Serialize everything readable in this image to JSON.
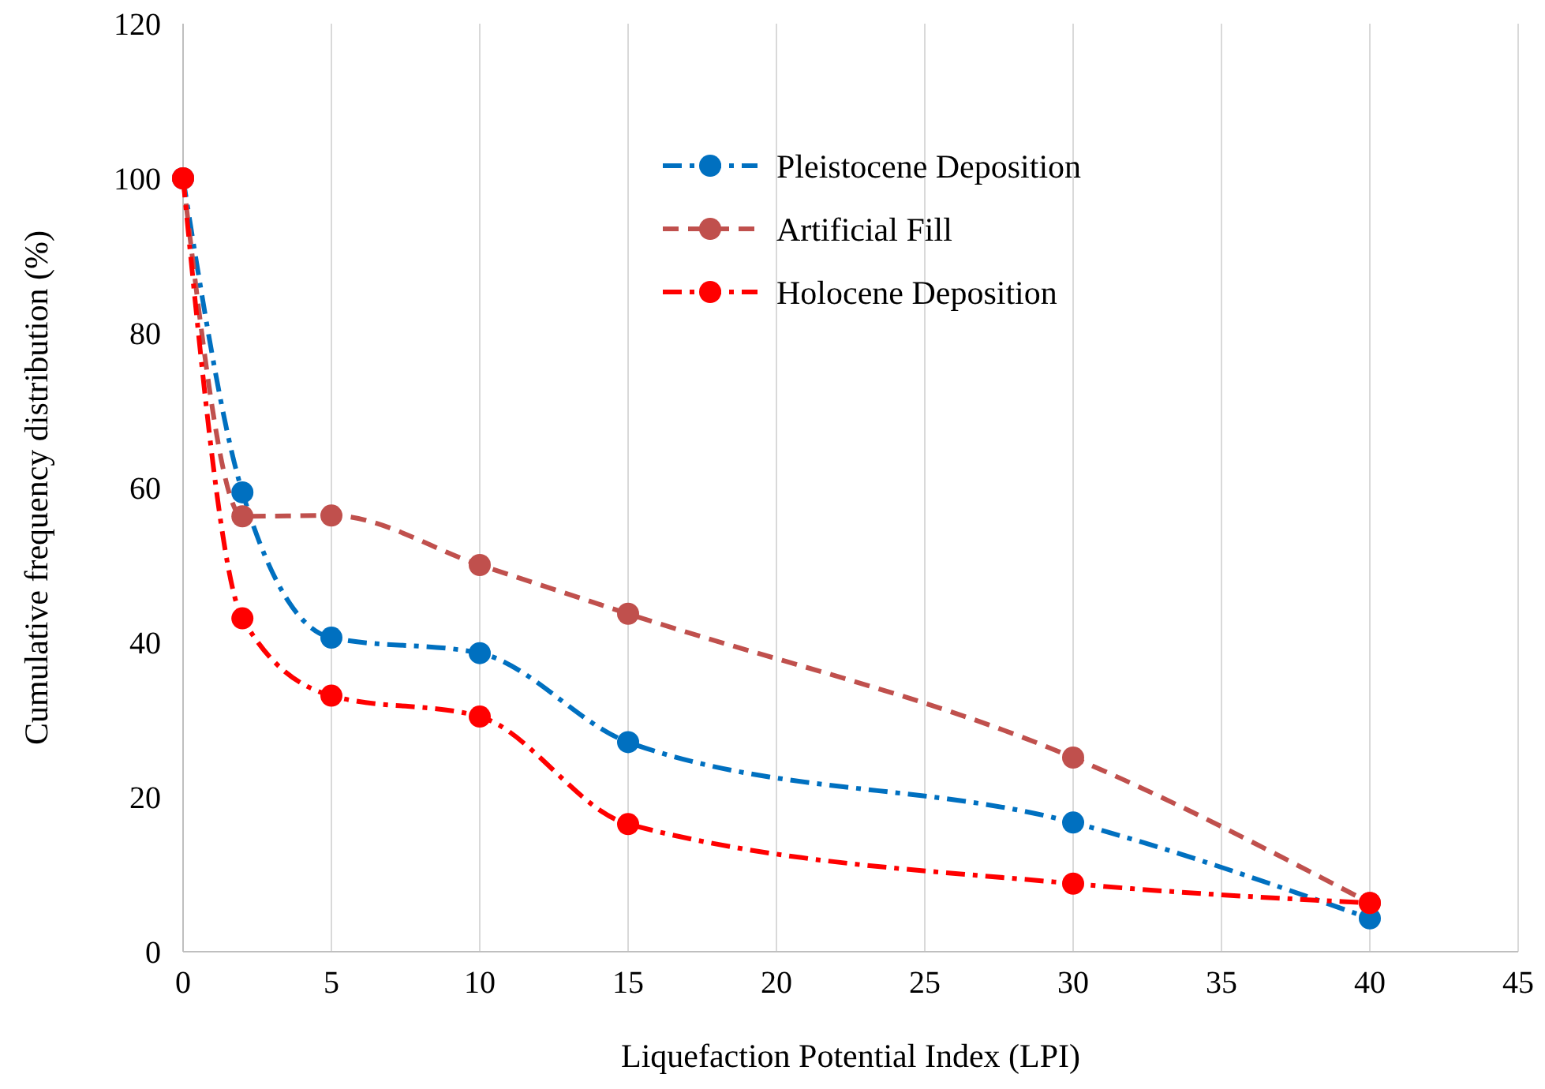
{
  "chart_data": {
    "type": "line",
    "xlabel": "Liquefaction Potential Index (LPI)",
    "ylabel": "Cumulative frequency distribution (%)",
    "xlim": [
      0,
      45
    ],
    "xticks": [
      0,
      5,
      10,
      15,
      20,
      25,
      30,
      35,
      40,
      45
    ],
    "ylim": [
      0,
      120
    ],
    "yticks": [
      0,
      20,
      40,
      60,
      80,
      100,
      120
    ],
    "grid": "x",
    "legend": "top right",
    "marker": "circle",
    "series": [
      {
        "name": "Pleistocene Deposition",
        "color": "#0070c0",
        "line_style": "dashdot",
        "x": [
          0,
          2,
          5,
          10,
          15,
          30,
          40
        ],
        "values": [
          100,
          59.4,
          40.6,
          38.6,
          27.1,
          16.7,
          4.3
        ]
      },
      {
        "name": "Artificial Fill",
        "color": "#c0504d",
        "line_style": "dashed",
        "x": [
          0,
          2,
          5,
          10,
          15,
          30,
          40
        ],
        "values": [
          100,
          56.3,
          56.4,
          50,
          43.7,
          25.1,
          6.3
        ]
      },
      {
        "name": "Holocene Deposition",
        "color": "#ff0000",
        "line_style": "dashdot",
        "x": [
          0,
          2,
          5,
          10,
          15,
          30,
          40
        ],
        "values": [
          100,
          43.1,
          33.1,
          30.4,
          16.5,
          8.8,
          6.3
        ]
      }
    ]
  }
}
